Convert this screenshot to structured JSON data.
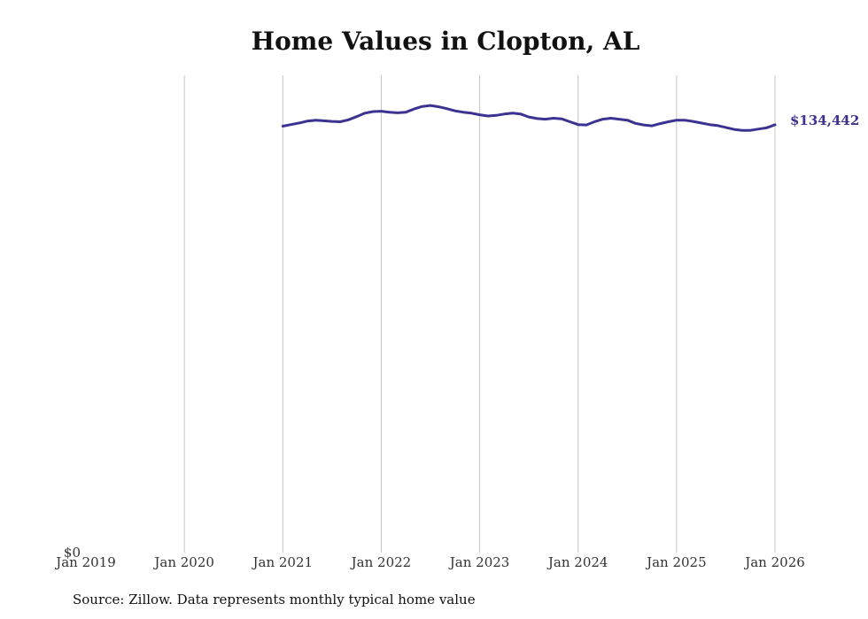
{
  "chart_data": {
    "type": "line",
    "title": "Home Values in Clopton, AL",
    "xlabel": "",
    "ylabel": "",
    "x_ticks": [
      "Jan 2019",
      "Jan 2020",
      "Jan 2021",
      "Jan 2022",
      "Jan 2023",
      "Jan 2024",
      "Jan 2025",
      "Jan 2026"
    ],
    "x_range": [
      "2019-01",
      "2026-01"
    ],
    "y_range": [
      0,
      150000
    ],
    "y_tick_labels": [
      "$0"
    ],
    "vertical_grid": true,
    "line_color": "#3b3291",
    "end_label": "$134,442",
    "series": [
      {
        "name": "Typical home value",
        "dates": [
          "2021-01",
          "2021-02",
          "2021-03",
          "2021-04",
          "2021-05",
          "2021-06",
          "2021-07",
          "2021-08",
          "2021-09",
          "2021-10",
          "2021-11",
          "2021-12",
          "2022-01",
          "2022-02",
          "2022-03",
          "2022-04",
          "2022-05",
          "2022-06",
          "2022-07",
          "2022-08",
          "2022-09",
          "2022-10",
          "2022-11",
          "2022-12",
          "2023-01",
          "2023-02",
          "2023-03",
          "2023-04",
          "2023-05",
          "2023-06",
          "2023-07",
          "2023-08",
          "2023-09",
          "2023-10",
          "2023-11",
          "2023-12",
          "2024-01",
          "2024-02",
          "2024-03",
          "2024-04",
          "2024-05",
          "2024-06",
          "2024-07",
          "2024-08",
          "2024-09",
          "2024-10",
          "2024-11",
          "2024-12",
          "2025-01",
          "2025-02",
          "2025-03",
          "2025-04",
          "2025-05",
          "2025-06",
          "2025-07",
          "2025-08",
          "2025-09",
          "2025-10",
          "2025-11",
          "2025-12",
          "2026-01"
        ],
        "values": [
          134000,
          134500,
          135000,
          135600,
          135900,
          135700,
          135500,
          135400,
          136000,
          137000,
          138100,
          138600,
          138700,
          138400,
          138200,
          138400,
          139400,
          140200,
          140500,
          140100,
          139500,
          138800,
          138400,
          138100,
          137600,
          137200,
          137400,
          137800,
          138100,
          137800,
          136900,
          136400,
          136200,
          136500,
          136300,
          135400,
          134500,
          134400,
          135400,
          136200,
          136500,
          136200,
          135900,
          134900,
          134400,
          134100,
          134800,
          135400,
          135900,
          135900,
          135500,
          135000,
          134500,
          134200,
          133600,
          133000,
          132700,
          132700,
          133100,
          133500,
          134442
        ]
      }
    ],
    "source": "Source: Zillow. Data represents monthly typical home value"
  }
}
